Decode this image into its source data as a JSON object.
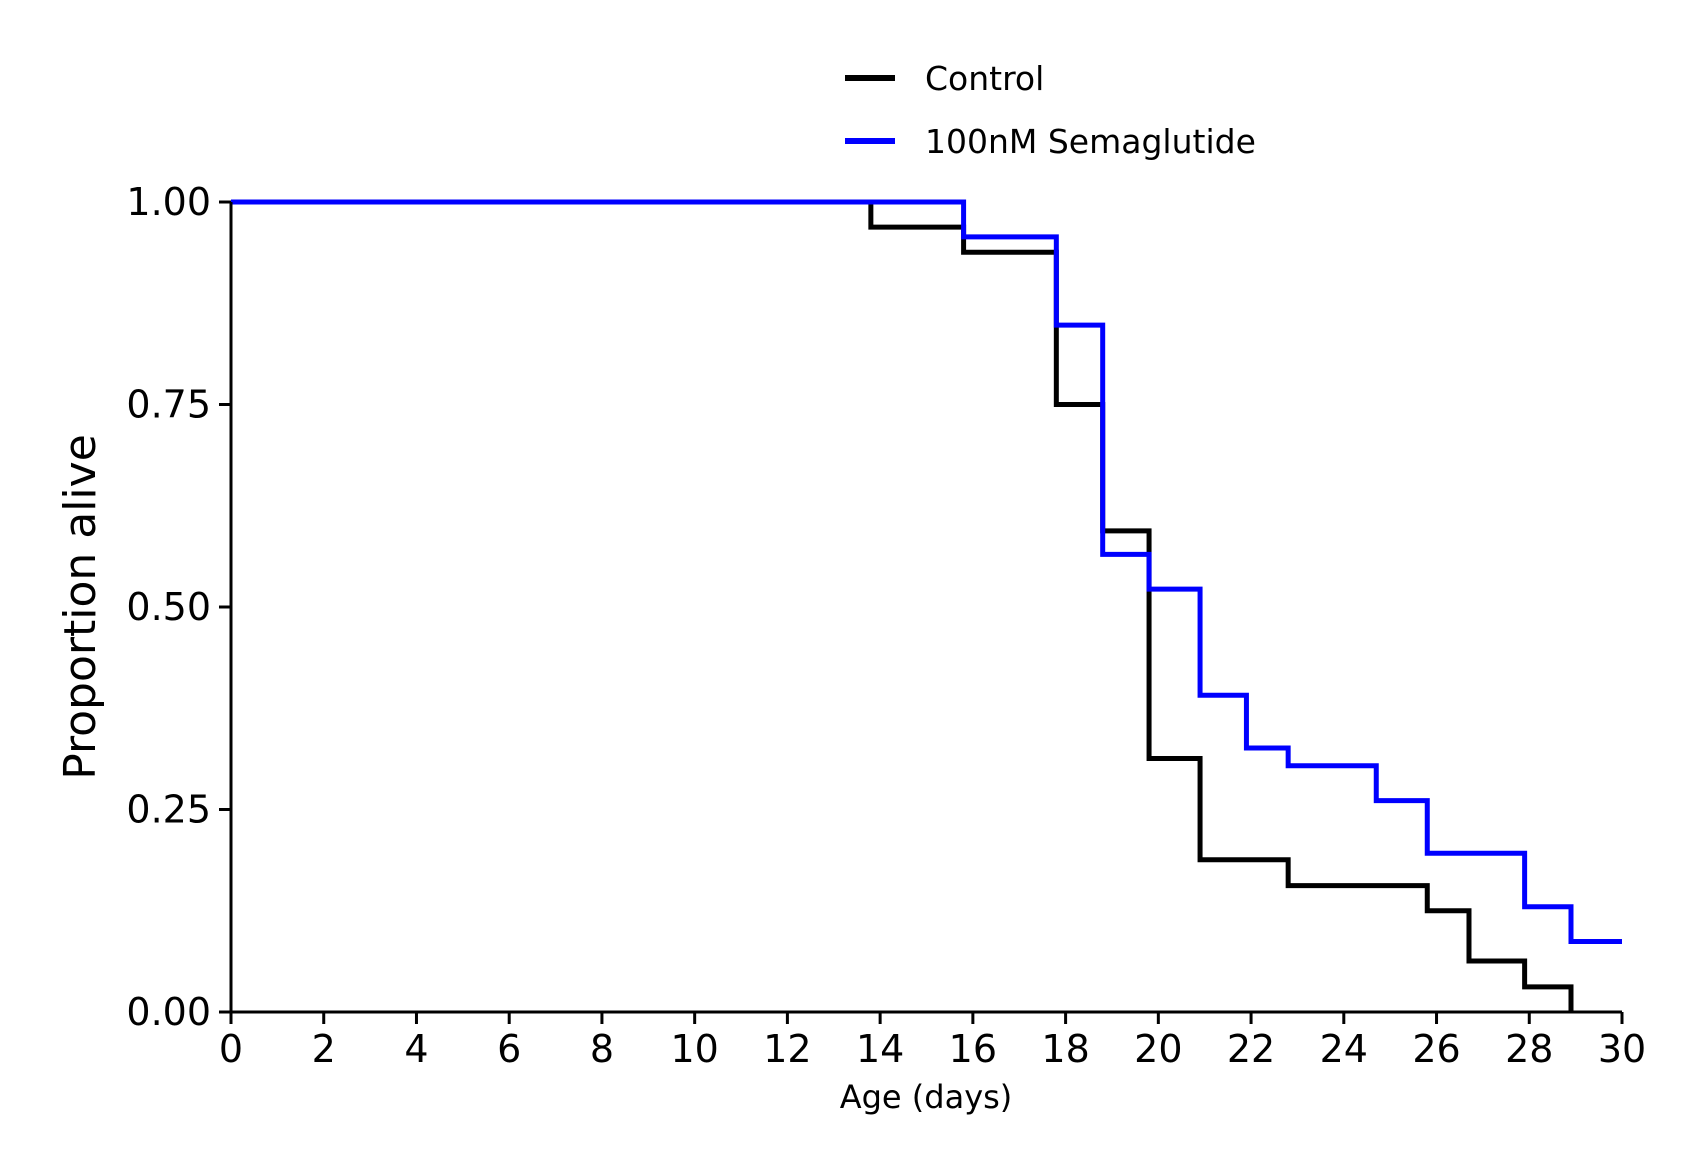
{
  "chart_data": {
    "type": "line",
    "step": true,
    "title": "",
    "xlabel": "Age (days)",
    "ylabel": "Proportion alive",
    "xlim": [
      0,
      30
    ],
    "ylim": [
      0,
      1
    ],
    "x_ticks": [
      "0",
      "2",
      "4",
      "6",
      "8",
      "10",
      "12",
      "14",
      "16",
      "18",
      "20",
      "22",
      "24",
      "26",
      "28",
      "30"
    ],
    "y_ticks": [
      "0.00",
      "0.25",
      "0.50",
      "0.75",
      "1.00"
    ],
    "grid": false,
    "legend_position": "top-center",
    "series": [
      {
        "name": "Control",
        "color": "#000000",
        "x": [
          0,
          13.8,
          15.8,
          17.8,
          18.8,
          19.8,
          20.9,
          22.8,
          25.8,
          26.7,
          27.9,
          28.9
        ],
        "y": [
          1.0,
          0.969,
          0.938,
          0.75,
          0.594,
          0.313,
          0.188,
          0.156,
          0.125,
          0.063,
          0.031,
          0.0
        ]
      },
      {
        "name": "100nM Semaglutide",
        "color": "#0000ff",
        "x": [
          0,
          15.8,
          17.8,
          18.8,
          19.8,
          20.9,
          21.9,
          22.8,
          24.7,
          25.8,
          27.9,
          28.9,
          30
        ],
        "y": [
          1.0,
          0.957,
          0.848,
          0.565,
          0.522,
          0.391,
          0.326,
          0.304,
          0.261,
          0.196,
          0.13,
          0.087,
          0.087
        ]
      }
    ]
  }
}
